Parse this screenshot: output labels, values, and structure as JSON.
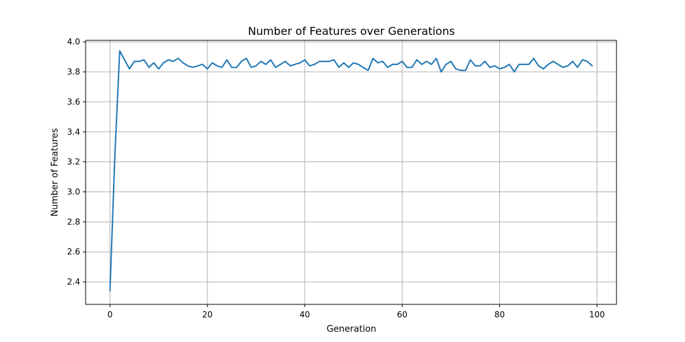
{
  "chart_data": {
    "type": "line",
    "title": "Number of Features over Generations",
    "xlabel": "Generation",
    "ylabel": "Number of Features",
    "xlim": [
      -5,
      104
    ],
    "ylim": [
      2.25,
      4.01
    ],
    "grid": true,
    "x_ticks": [
      0,
      20,
      40,
      60,
      80,
      100
    ],
    "x_tick_labels": [
      "0",
      "20",
      "40",
      "60",
      "80",
      "100"
    ],
    "y_ticks": [
      2.4,
      2.6,
      2.8,
      3.0,
      3.2,
      3.4,
      3.6,
      3.8,
      4.0
    ],
    "y_tick_labels": [
      "2.4",
      "2.6",
      "2.8",
      "3.0",
      "3.2",
      "3.4",
      "3.6",
      "3.8",
      "4.0"
    ],
    "series": [
      {
        "color": "#1f77b4",
        "x": [
          0,
          1,
          2,
          3,
          4,
          5,
          6,
          7,
          8,
          9,
          10,
          11,
          12,
          13,
          14,
          15,
          16,
          17,
          18,
          19,
          20,
          21,
          22,
          23,
          24,
          25,
          26,
          27,
          28,
          29,
          30,
          31,
          32,
          33,
          34,
          35,
          36,
          37,
          38,
          39,
          40,
          41,
          42,
          43,
          44,
          45,
          46,
          47,
          48,
          49,
          50,
          51,
          52,
          53,
          54,
          55,
          56,
          57,
          58,
          59,
          60,
          61,
          62,
          63,
          64,
          65,
          66,
          67,
          68,
          69,
          70,
          71,
          72,
          73,
          74,
          75,
          76,
          77,
          78,
          79,
          80,
          81,
          82,
          83,
          84,
          85,
          86,
          87,
          88,
          89,
          90,
          91,
          92,
          93,
          94,
          95,
          96,
          97,
          98,
          99
        ],
        "y": [
          2.34,
          3.24,
          3.94,
          3.88,
          3.82,
          3.87,
          3.87,
          3.88,
          3.83,
          3.86,
          3.82,
          3.86,
          3.88,
          3.87,
          3.89,
          3.86,
          3.84,
          3.83,
          3.84,
          3.85,
          3.82,
          3.86,
          3.84,
          3.83,
          3.88,
          3.83,
          3.83,
          3.87,
          3.89,
          3.83,
          3.84,
          3.87,
          3.85,
          3.88,
          3.83,
          3.85,
          3.87,
          3.84,
          3.85,
          3.86,
          3.88,
          3.84,
          3.85,
          3.87,
          3.87,
          3.87,
          3.88,
          3.83,
          3.86,
          3.83,
          3.86,
          3.85,
          3.83,
          3.81,
          3.89,
          3.86,
          3.87,
          3.83,
          3.85,
          3.85,
          3.87,
          3.83,
          3.83,
          3.88,
          3.85,
          3.87,
          3.85,
          3.89,
          3.8,
          3.85,
          3.87,
          3.82,
          3.81,
          3.81,
          3.88,
          3.84,
          3.84,
          3.87,
          3.83,
          3.84,
          3.82,
          3.83,
          3.85,
          3.8,
          3.85,
          3.85,
          3.85,
          3.89,
          3.84,
          3.82,
          3.85,
          3.87,
          3.85,
          3.83,
          3.84,
          3.87,
          3.83,
          3.88,
          3.87,
          3.84
        ]
      }
    ]
  }
}
